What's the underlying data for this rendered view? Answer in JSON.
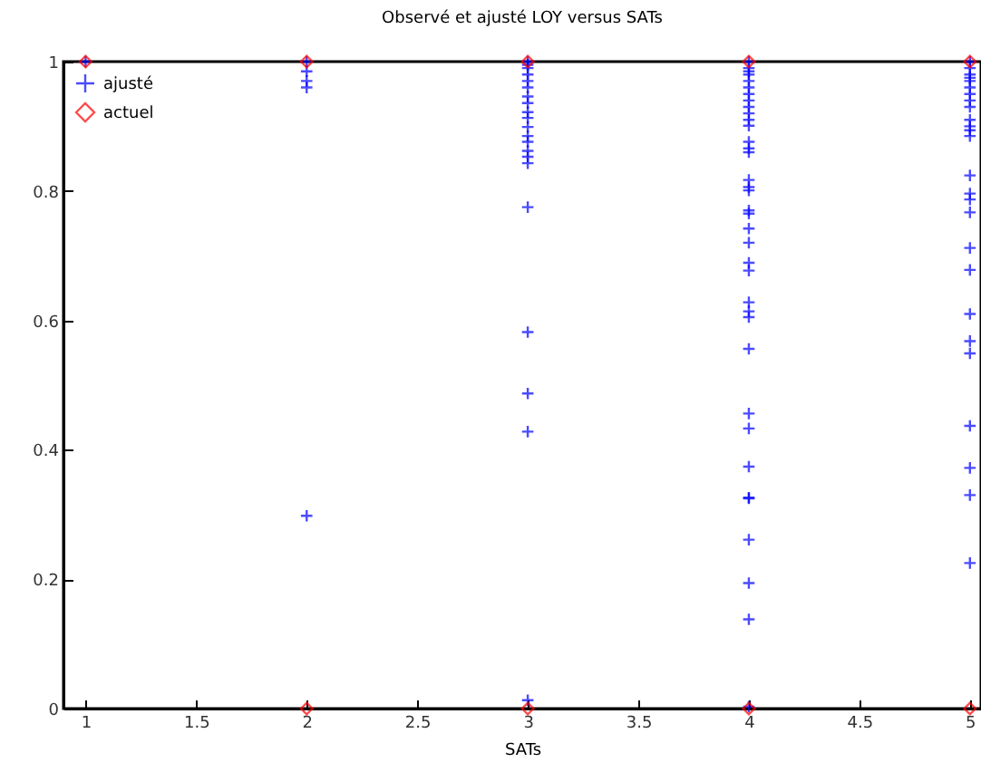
{
  "chart_data": {
    "type": "scatter",
    "title": "Observé et ajusté LOY versus SATs",
    "xlabel": "SATs",
    "xlim": [
      0.9,
      5.05
    ],
    "xticks": [
      1,
      1.5,
      2,
      2.5,
      3,
      3.5,
      4,
      4.5,
      5
    ],
    "ylim": [
      0,
      1
    ],
    "yticks": [
      0,
      0.2,
      0.4,
      0.6,
      0.8,
      1
    ],
    "grid": false,
    "legend": "top left",
    "series": [
      {
        "name": "ajusté",
        "color": "#0000ff",
        "marker": "cross",
        "x": [
          1,
          2,
          2,
          2,
          2,
          2,
          3,
          3,
          3,
          3,
          3,
          3,
          3,
          3,
          3,
          3,
          3,
          3,
          3,
          3,
          3,
          3,
          3,
          3,
          3,
          3,
          3,
          4,
          4,
          4,
          4,
          4,
          4,
          4,
          4,
          4,
          4,
          4,
          4,
          4,
          4,
          4,
          4,
          4,
          4,
          4,
          4,
          4,
          4,
          4,
          4,
          4,
          4,
          4,
          4,
          4,
          4,
          4,
          4,
          4,
          4,
          4,
          4,
          4,
          5,
          5,
          5,
          5,
          5,
          5,
          5,
          5,
          5,
          5,
          5,
          5,
          5,
          5,
          5,
          5,
          5,
          5,
          5,
          5,
          5,
          5,
          5,
          5,
          5,
          5
        ],
        "values": [
          1,
          1,
          0.985,
          0.97,
          0.96,
          0.298,
          1,
          0.99,
          0.98,
          0.97,
          0.96,
          0.946,
          0.936,
          0.922,
          0.913,
          0.899,
          0.885,
          0.876,
          0.862,
          0.853,
          0.843,
          0.775,
          0.582,
          0.487,
          0.428,
          0.013,
          0.995,
          1,
          0.99,
          0.98,
          0.97,
          0.96,
          0.95,
          0.94,
          0.93,
          0.92,
          0.901,
          0.876,
          0.866,
          0.86,
          0.817,
          0.806,
          0.801,
          0.77,
          0.765,
          0.742,
          0.72,
          0.689,
          0.677,
          0.628,
          0.614,
          0.605,
          0.556,
          0.456,
          0.433,
          0.374,
          0.326,
          0.325,
          0.261,
          0.194,
          0.138,
          0.003,
          0.91,
          0.985,
          1,
          0.99,
          0.98,
          0.97,
          0.96,
          0.95,
          0.94,
          0.93,
          0.91,
          0.9,
          0.894,
          0.885,
          0.824,
          0.796,
          0.787,
          0.767,
          0.712,
          0.678,
          0.61,
          0.568,
          0.549,
          0.437,
          0.372,
          0.33,
          0.225,
          0.975
        ]
      },
      {
        "name": "actuel",
        "color": "#ff0000",
        "marker": "diamond",
        "x": [
          1,
          2,
          2,
          3,
          3,
          4,
          4,
          5,
          5
        ],
        "values": [
          1,
          1,
          0,
          1,
          0,
          1,
          0,
          1,
          0
        ]
      }
    ]
  }
}
